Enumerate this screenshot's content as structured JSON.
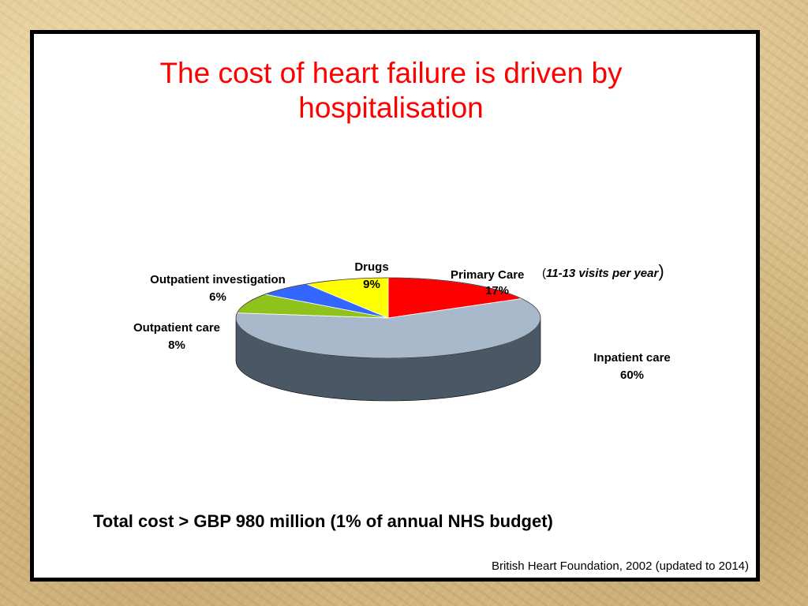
{
  "slide": {
    "title_line1": "The cost of heart failure is driven by",
    "title_line2": "hospitalisation",
    "total_cost": "Total cost > GBP 980 million  (1% of annual NHS budget)",
    "source": "British Heart Foundation, 2002 (updated to 2014)"
  },
  "chart_data": {
    "type": "pie",
    "style": "3d",
    "title": "",
    "slices": [
      {
        "name": "Primary Care",
        "value": 17,
        "value_label": "17%",
        "color": "#ff0000",
        "side_color": "#b00000"
      },
      {
        "name": "Inpatient care",
        "value": 60,
        "value_label": "60%",
        "color": "#a9b9cc",
        "side_color": "#4a5866"
      },
      {
        "name": "Outpatient care",
        "value": 8,
        "value_label": "8%",
        "color": "#8fc21a",
        "side_color": "#5c7d10"
      },
      {
        "name": "Outpatient investigation",
        "value": 6,
        "value_label": "6%",
        "color": "#3366ff",
        "side_color": "#1f3e99"
      },
      {
        "name": "Drugs",
        "value": 9,
        "value_label": "9%",
        "color": "#ffff00",
        "side_color": "#a6a600"
      }
    ],
    "annotation": {
      "open_paren": "(",
      "text": "11-13 visits per year",
      "close_paren": ")"
    }
  }
}
